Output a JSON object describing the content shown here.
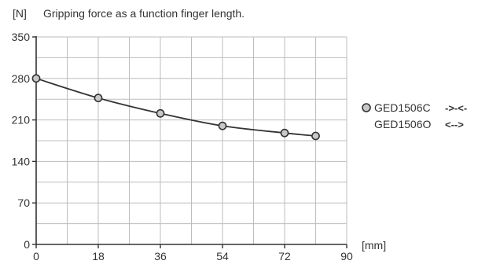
{
  "chart_data": {
    "type": "line",
    "title": "Gripping force as a function finger length.",
    "yunit": "[N]",
    "xunit": "[mm]",
    "xlim": [
      0,
      90
    ],
    "ylim": [
      0,
      350
    ],
    "xticks": [
      "0",
      "18",
      "36",
      "54",
      "72",
      "90"
    ],
    "xtick_values": [
      0,
      18,
      36,
      54,
      72,
      90
    ],
    "yticks": [
      "0",
      "70",
      "140",
      "210",
      "280",
      "350"
    ],
    "ytick_values": [
      0,
      70,
      140,
      210,
      280,
      350
    ],
    "x_minor_gridlines": [
      0,
      9,
      18,
      27,
      36,
      45,
      54,
      63,
      72,
      81,
      90
    ],
    "y_minor_gridlines": [
      0,
      35,
      70,
      105,
      140,
      175,
      210,
      245,
      280,
      315,
      350
    ],
    "grid": true,
    "legend_position": "right",
    "series": [
      {
        "name": "GED1506C",
        "symbol": "->-<-",
        "marker": "circle",
        "color": "#333333",
        "marker_fill": "#c8c8c8",
        "x": [
          0,
          18,
          36,
          54,
          72,
          81
        ],
        "y": [
          280,
          247,
          221,
          200,
          188,
          183
        ]
      },
      {
        "name": "GED1506O",
        "symbol": "<-->",
        "marker": "none",
        "color": "#333333",
        "x": [],
        "y": []
      }
    ]
  }
}
